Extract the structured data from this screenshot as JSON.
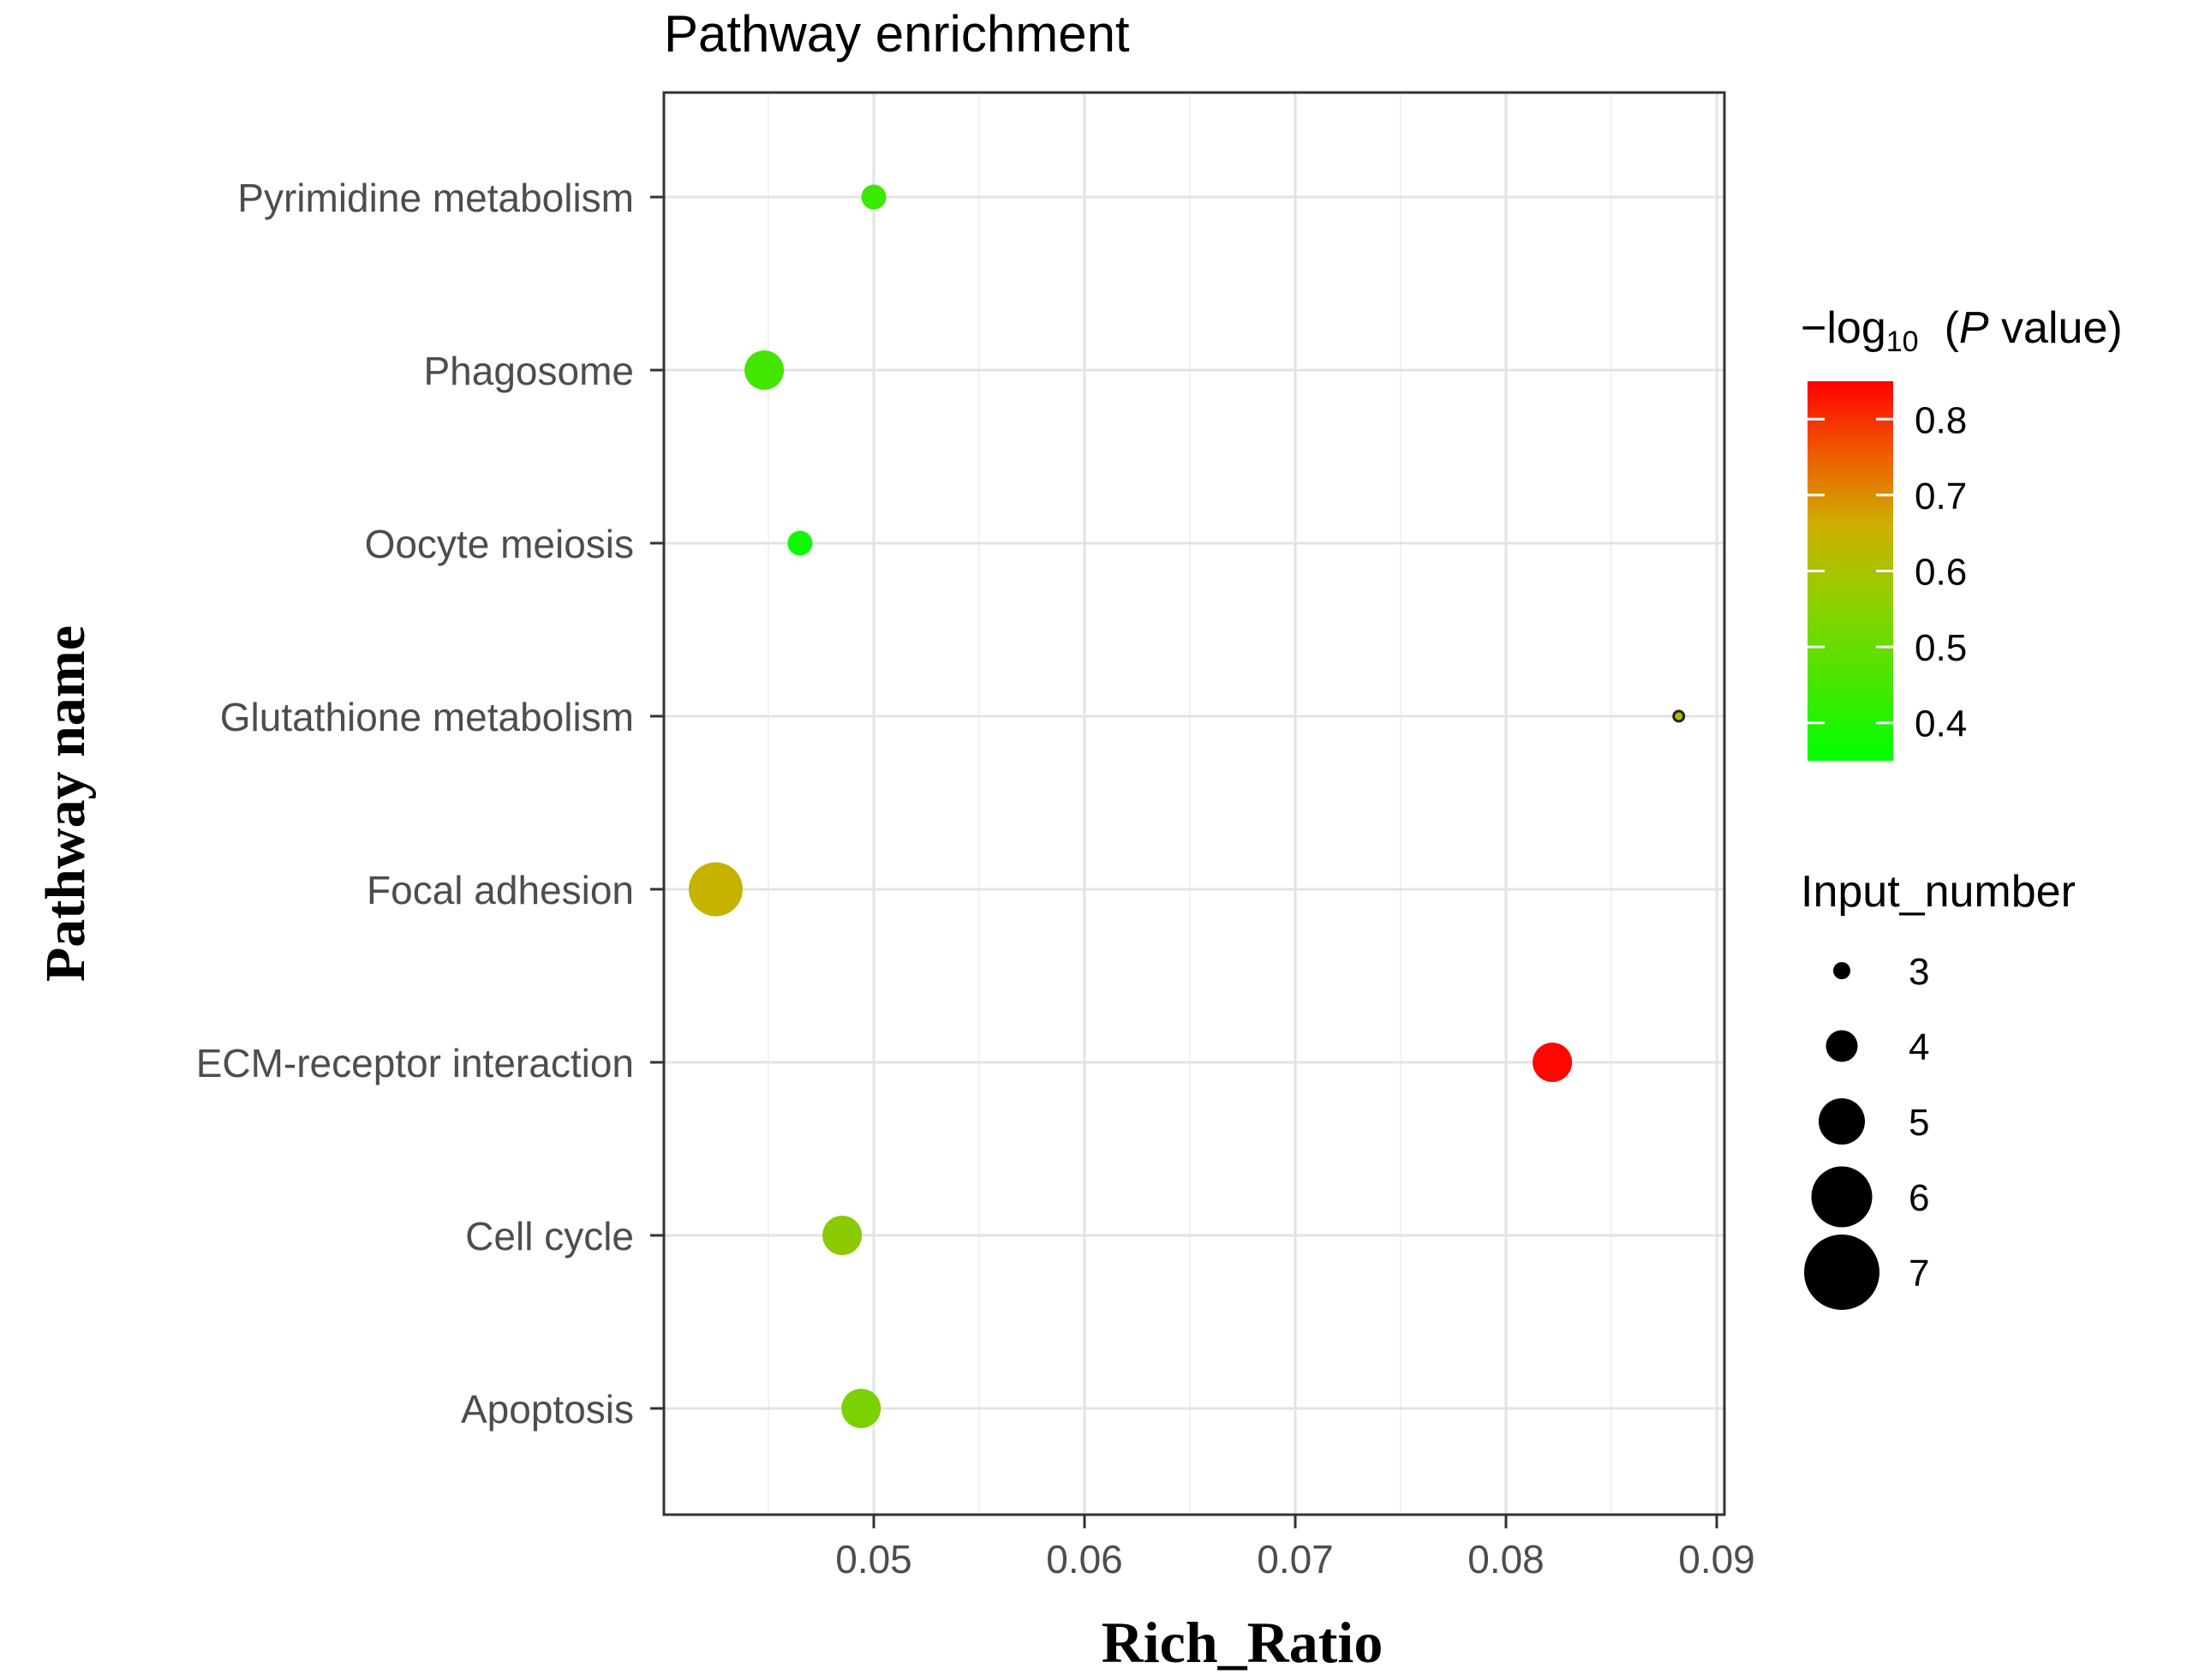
{
  "chart_data": {
    "type": "scatter",
    "title": "Pathway enrichment",
    "xlabel": "Rich_Ratio",
    "ylabel": "Pathway name",
    "xlim": [
      0.04,
      0.09
    ],
    "xticks": [
      0.05,
      0.06,
      0.07,
      0.08,
      0.09
    ],
    "xtick_labels": [
      "0.05",
      "0.06",
      "0.07",
      "0.08",
      "0.09"
    ],
    "grid": true,
    "categories": [
      "Pyrimidine metabolism",
      "Phagosome",
      "Oocyte meiosis",
      "Glutathione metabolism",
      "Focal adhesion",
      "ECM-receptor interaction",
      "Cell cycle",
      "Apoptosis"
    ],
    "points": [
      {
        "pathway": "Pyrimidine metabolism",
        "rich_ratio": 0.05,
        "neg_log10_p": 0.42,
        "input_number": 4
      },
      {
        "pathway": "Phagosome",
        "rich_ratio": 0.0448,
        "neg_log10_p": 0.43,
        "input_number": 5
      },
      {
        "pathway": "Oocyte meiosis",
        "rich_ratio": 0.0465,
        "neg_log10_p": 0.37,
        "input_number": 4
      },
      {
        "pathway": "Glutathione metabolism",
        "rich_ratio": 0.0882,
        "neg_log10_p": 0.57,
        "input_number": 3
      },
      {
        "pathway": "Focal adhesion",
        "rich_ratio": 0.0425,
        "neg_log10_p": 0.59,
        "input_number": 6
      },
      {
        "pathway": "ECM-receptor interaction",
        "rich_ratio": 0.0822,
        "neg_log10_p": 0.84,
        "input_number": 5
      },
      {
        "pathway": "Cell cycle",
        "rich_ratio": 0.0485,
        "neg_log10_p": 0.52,
        "input_number": 5
      },
      {
        "pathway": "Apoptosis",
        "rich_ratio": 0.0494,
        "neg_log10_p": 0.5,
        "input_number": 5
      }
    ],
    "color_legend": {
      "title_prefix": "−log",
      "title_subscript": "10",
      "title_paren_open": "(",
      "title_p": "P",
      "title_suffix": " value)",
      "range": [
        0.35,
        0.85
      ],
      "ticks": [
        0.4,
        0.5,
        0.6,
        0.7,
        0.8
      ],
      "tick_labels": [
        "0.4",
        "0.5",
        "0.6",
        "0.7",
        "0.8"
      ],
      "colors": {
        "low": "#00ff00",
        "mid": "#cdb000",
        "high": "#ff0000"
      }
    },
    "size_legend": {
      "title": "Input_number",
      "values": [
        3,
        4,
        5,
        6,
        7
      ],
      "labels": [
        "3",
        "4",
        "5",
        "6",
        "7"
      ]
    }
  }
}
